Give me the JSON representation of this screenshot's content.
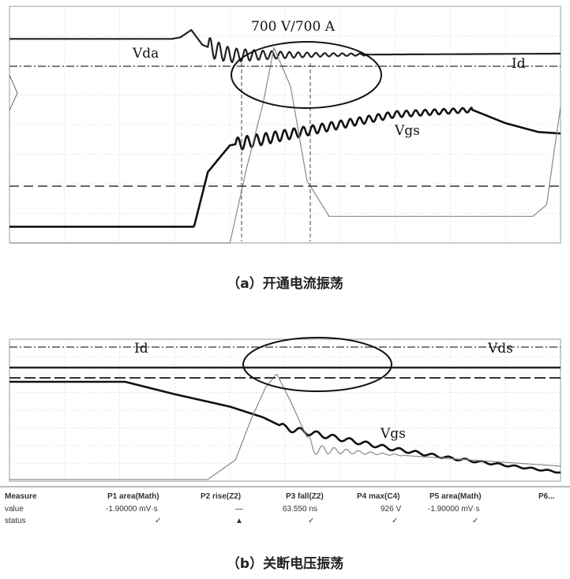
{
  "chart_data": [
    {
      "type": "line",
      "title": "700 V/700 A",
      "caption": "（a）开通电流振荡",
      "xlim": [
        0,
        10
      ],
      "ylim": [
        0,
        8
      ],
      "grid": true,
      "series": [
        {
          "name": "Vda",
          "color": "#222222",
          "x": [
            0,
            2.95,
            3.1,
            3.3,
            3.5,
            3.7,
            4.0,
            4.5,
            10
          ],
          "y": [
            6.9,
            6.9,
            6.95,
            7.2,
            6.7,
            6.55,
            6.35,
            6.35,
            6.4
          ]
        },
        {
          "name": "Id",
          "color": "#111111",
          "x": [
            0,
            3.35,
            3.6,
            4.0,
            5.0,
            6.0,
            7.0,
            8.4,
            9.0,
            9.6,
            10
          ],
          "y": [
            0.55,
            0.55,
            2.4,
            3.3,
            3.65,
            4.0,
            4.35,
            4.5,
            4.05,
            3.75,
            3.7
          ]
        },
        {
          "name": "Vgs",
          "color": "#888888",
          "x": [
            0,
            4.0,
            4.3,
            4.6,
            4.8,
            5.1,
            5.4,
            5.8,
            9.5,
            9.75,
            9.9,
            10
          ],
          "y": [
            0,
            0,
            2.5,
            4.7,
            6.6,
            5.3,
            2.1,
            0.9,
            0.9,
            1.3,
            3.3,
            4.6
          ]
        }
      ]
    },
    {
      "type": "line",
      "title": "",
      "caption": "（b）关断电压振荡",
      "xlim": [
        0,
        10
      ],
      "ylim": [
        0,
        8
      ],
      "grid": true,
      "series": [
        {
          "name": "Id",
          "color": "#111111",
          "x": [
            0,
            2.1,
            3.0,
            4.0,
            4.6,
            5.0,
            6.0,
            7.0,
            8.0,
            9.0,
            10
          ],
          "y": [
            5.6,
            5.6,
            4.9,
            4.2,
            3.6,
            3.0,
            2.4,
            1.8,
            1.3,
            0.9,
            0.5
          ]
        },
        {
          "name": "Vds",
          "color": "#222222",
          "x": [
            0,
            10
          ],
          "y": [
            6.4,
            6.4
          ]
        },
        {
          "name": "Vgs",
          "color": "#888888",
          "x": [
            0,
            3.6,
            4.1,
            4.4,
            4.65,
            4.85,
            5.1,
            5.5,
            10
          ],
          "y": [
            0.1,
            0.1,
            1.2,
            3.6,
            5.3,
            6.05,
            4.5,
            1.8,
            0.85
          ]
        }
      ]
    }
  ],
  "measure_table": {
    "header": [
      "Measure",
      "P1 area(Math)",
      "P2 rise(Z2)",
      "P3 fall(Z2)",
      "P4 max(C4)",
      "P5 area(Math)",
      "P6..."
    ],
    "value": [
      "value",
      "-1.90000 mV·s",
      "—",
      "63.550 ns",
      "926 V",
      "-1.90000 mV·s"
    ],
    "status": [
      "status",
      "✓",
      "▲",
      "✓",
      "✓",
      "✓"
    ]
  }
}
